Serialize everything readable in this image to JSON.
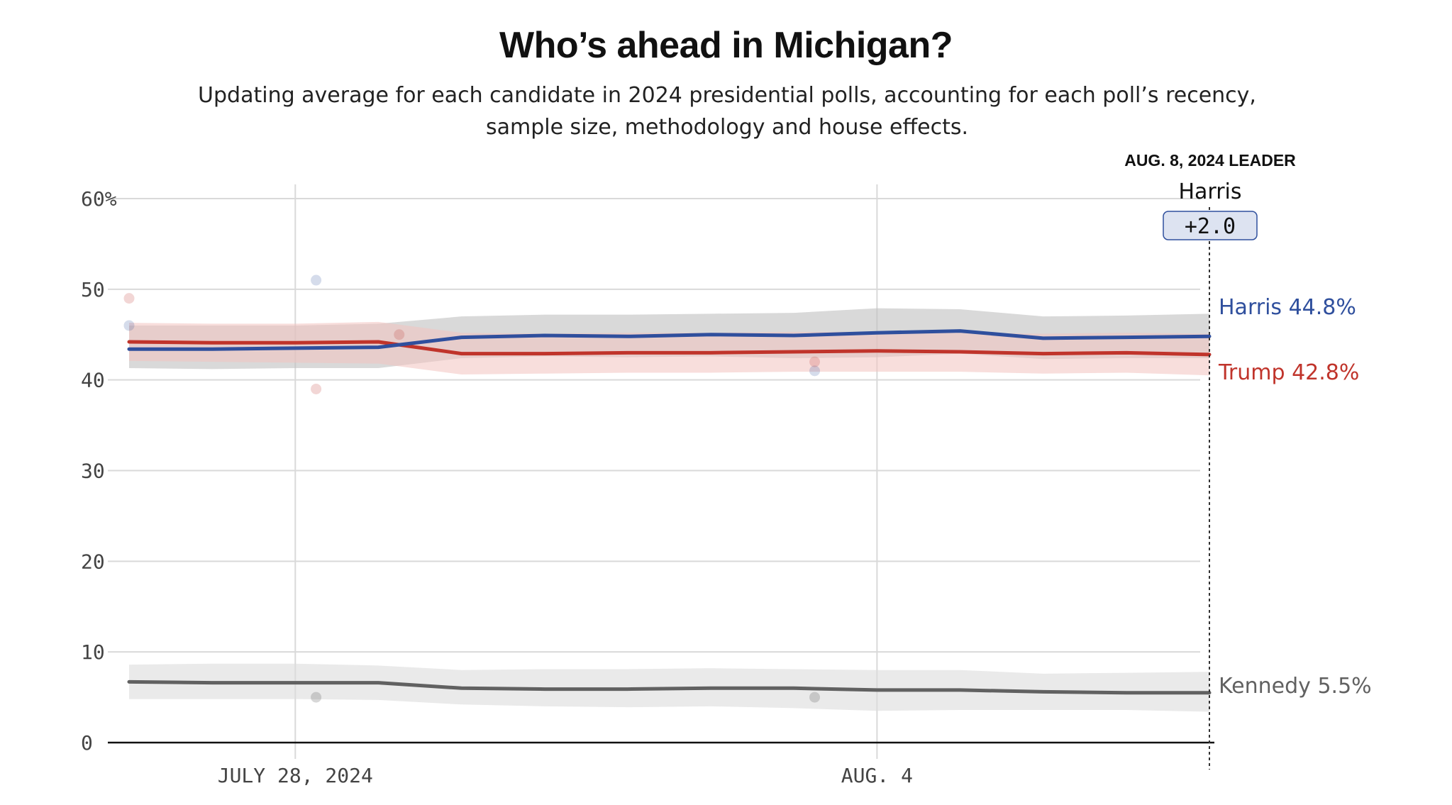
{
  "title": "Who’s ahead in Michigan?",
  "subtitle": "Updating average for each candidate in 2024 presidential polls, accounting for each poll’s recency, sample size, methodology and house effects.",
  "leader": {
    "heading": "AUG. 8, 2024 LEADER",
    "name": "Harris",
    "margin": "+2.0"
  },
  "colors": {
    "harris": "#2f4f9d",
    "trump": "#c0342b",
    "kennedy": "#616161",
    "harris_band": "#bfbfbf",
    "trump_band": "#f2c3c0",
    "kennedy_band": "#dcdcdc",
    "grid": "#d9d9d9",
    "leader_box": "#dde3f1"
  },
  "chart_data": {
    "type": "line",
    "title": "Who’s ahead in Michigan?",
    "x_axis": {
      "start": "2024-07-26",
      "end": "2024-08-08",
      "ticks": [
        {
          "date": "2024-07-28",
          "label": "JULY 28, 2024"
        },
        {
          "date": "2024-08-04",
          "label": "AUG. 4"
        }
      ]
    },
    "y_axis": {
      "min": 0,
      "max": 60,
      "ticks": [
        0,
        10,
        20,
        30,
        40,
        50,
        60
      ],
      "tick_labels": [
        "0",
        "10",
        "20",
        "30",
        "40",
        "50",
        "60%"
      ],
      "grid": true
    },
    "dates": [
      "2024-07-26",
      "2024-07-27",
      "2024-07-28",
      "2024-07-29",
      "2024-07-30",
      "2024-07-31",
      "2024-08-01",
      "2024-08-02",
      "2024-08-03",
      "2024-08-04",
      "2024-08-05",
      "2024-08-06",
      "2024-08-07",
      "2024-08-08"
    ],
    "series": [
      {
        "name": "Harris",
        "color_key": "harris",
        "end_label": "Harris 44.8%",
        "values": [
          43.4,
          43.4,
          43.5,
          43.6,
          44.7,
          44.9,
          44.8,
          45.0,
          44.9,
          45.2,
          45.4,
          44.6,
          44.7,
          44.8
        ],
        "band_upper": [
          46.0,
          46.0,
          46.0,
          46.2,
          47.0,
          47.2,
          47.2,
          47.3,
          47.4,
          47.9,
          47.8,
          47.0,
          47.1,
          47.3
        ],
        "band_lower": [
          41.3,
          41.2,
          41.3,
          41.3,
          42.4,
          42.6,
          42.5,
          42.6,
          42.4,
          42.5,
          42.9,
          42.3,
          42.4,
          42.4
        ],
        "polls": [
          {
            "date": "2024-07-26",
            "value": 46
          },
          {
            "date": "2024-07-28",
            "value": 51
          },
          {
            "date": "2024-08-03",
            "value": 41
          }
        ]
      },
      {
        "name": "Trump",
        "color_key": "trump",
        "end_label": "Trump 42.8%",
        "values": [
          44.2,
          44.1,
          44.1,
          44.2,
          42.9,
          42.9,
          43.0,
          43.0,
          43.1,
          43.2,
          43.1,
          42.9,
          43.0,
          42.8
        ],
        "band_upper": [
          46.3,
          46.2,
          46.2,
          46.4,
          45.2,
          45.1,
          45.2,
          45.2,
          45.3,
          45.3,
          45.2,
          45.1,
          45.2,
          45.1
        ],
        "band_lower": [
          42.1,
          42.0,
          41.9,
          41.8,
          40.6,
          40.7,
          40.8,
          40.8,
          40.9,
          40.9,
          40.9,
          40.7,
          40.8,
          40.5
        ],
        "polls": [
          {
            "date": "2024-07-26",
            "value": 49
          },
          {
            "date": "2024-07-28",
            "value": 39
          },
          {
            "date": "2024-07-29",
            "value": 45
          },
          {
            "date": "2024-08-03",
            "value": 42
          }
        ]
      },
      {
        "name": "Kennedy",
        "color_key": "kennedy",
        "end_label": "Kennedy 5.5%",
        "values": [
          6.7,
          6.6,
          6.6,
          6.6,
          6.0,
          5.9,
          5.9,
          6.0,
          6.0,
          5.8,
          5.8,
          5.6,
          5.5,
          5.5
        ],
        "band_upper": [
          8.6,
          8.7,
          8.7,
          8.5,
          8.0,
          8.1,
          8.1,
          8.2,
          8.1,
          8.0,
          8.0,
          7.6,
          7.7,
          7.8
        ],
        "band_lower": [
          4.8,
          4.8,
          4.8,
          4.7,
          4.2,
          4.0,
          3.9,
          4.0,
          3.8,
          3.5,
          3.6,
          3.6,
          3.6,
          3.4
        ],
        "polls": [
          {
            "date": "2024-07-28",
            "value": 5
          },
          {
            "date": "2024-08-03",
            "value": 5
          }
        ]
      }
    ],
    "leader_date": "2024-08-08"
  }
}
